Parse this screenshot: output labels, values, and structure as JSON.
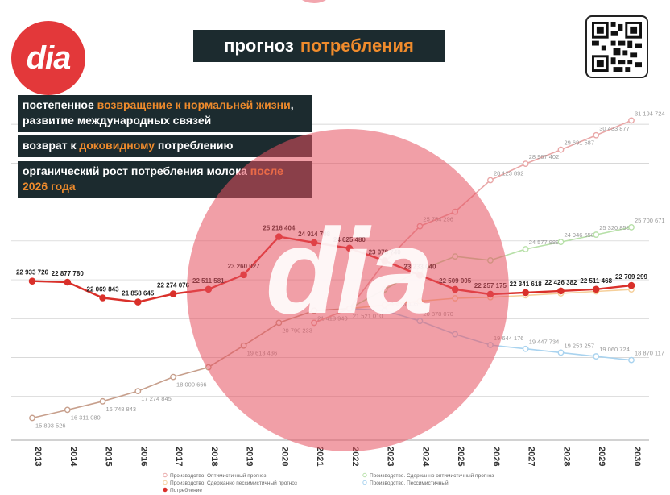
{
  "logo": {
    "text": "dia"
  },
  "header": {
    "title_part1": "прогноз",
    "title_part2": "потребления"
  },
  "notes": {
    "n1_a": "постепенное ",
    "n1_b": "возвращение к нормальней жизни",
    "n1_c": ", развитие международных связей",
    "n2_a": "возврат к ",
    "n2_b": "доковидному",
    "n2_c": " потреблению",
    "n3_a": "органический рост потребления молока ",
    "n3_b": "после 2026 года"
  },
  "watermark": {
    "text": "dia"
  },
  "colors": {
    "consumption": "#d9302a",
    "optimistic": "#e9a7a7",
    "mod_optimistic": "#b7e0a8",
    "mod_pessimistic": "#f5cf9a",
    "pessimistic": "#a9d3ef",
    "history": "#c79f8c",
    "accent": "#ef8b2c",
    "dark": "#1c2b2f"
  },
  "chart_data": {
    "type": "line",
    "x": [
      "2013",
      "2014",
      "2015",
      "2016",
      "2017",
      "2018",
      "2019",
      "2020",
      "2021",
      "2022",
      "2023",
      "2024",
      "2025",
      "2026",
      "2027",
      "2028",
      "2029",
      "2030"
    ],
    "ylim": [
      15000000,
      32000000
    ],
    "series": [
      {
        "name": "Потребление",
        "key": "consumption",
        "values": [
          22933726,
          22877780,
          22069843,
          21858645,
          22274076,
          22511581,
          23260027,
          25216404,
          24914798,
          24625480,
          23978740,
          23233040,
          22509005,
          22257175,
          22341618,
          22426382,
          22511468,
          22709299
        ],
        "labels": [
          "22 933 726",
          "22 877 780",
          "22 069 843",
          "21 858 645",
          "22 274 076",
          "22 511 581",
          "23 260 027",
          "25 216 404",
          "24 914 798",
          "24 625 480",
          "23 978 740",
          "23 233 040",
          "22 509 005",
          "22 257 175",
          "22 341 618",
          "22 426 382",
          "22 511 468",
          "22 709 299"
        ]
      },
      {
        "name": "Производство. Оптимистичный прогноз",
        "key": "optimistic",
        "values": [
          null,
          null,
          null,
          null,
          null,
          null,
          null,
          null,
          20790000,
          21521010,
          23900000,
          25754296,
          26500000,
          28123892,
          28967402,
          29691587,
          30433877,
          31194724
        ],
        "labels": [
          "",
          "",
          "",
          "",
          "",
          "",
          "",
          "",
          "",
          "",
          "",
          "25 754 296",
          "",
          "28 123 892",
          "28 967 402",
          "29 691 587",
          "30 433 877",
          "31 194 724"
        ]
      },
      {
        "name": "Производство. Сдержанно оптимистичный прогноз",
        "key": "mod_optimistic",
        "values": [
          null,
          null,
          null,
          null,
          null,
          null,
          null,
          null,
          20790000,
          21521010,
          22500000,
          23500000,
          24200000,
          24000000,
          24577989,
          24946658,
          25320858,
          25700671
        ],
        "labels": [
          "",
          "",
          "",
          "",
          "",
          "",
          "",
          "",
          "",
          "",
          "",
          "",
          "",
          "",
          "24 577 989",
          "24 946 658",
          "25 320 858",
          "25 700 671"
        ]
      },
      {
        "name": "Производство. Сдержанно пессимистичный прогноз",
        "key": "mod_pessimistic",
        "values": [
          null,
          null,
          null,
          null,
          null,
          null,
          null,
          null,
          20790000,
          21521010,
          21700000,
          21900000,
          22050000,
          22100000,
          22200000,
          22300000,
          22400000,
          22500000
        ],
        "labels": [
          "",
          "",
          "",
          "",
          "",
          "",
          "",
          "",
          "",
          "",
          "",
          "",
          "",
          "",
          "",
          "",
          "",
          ""
        ]
      },
      {
        "name": "Производство. Пессимистичный",
        "key": "pessimistic",
        "values": [
          null,
          null,
          null,
          null,
          null,
          null,
          null,
          null,
          null,
          21521010,
          21413405,
          20878070,
          20200000,
          19644176,
          19447734,
          19253257,
          19060724,
          18870117
        ],
        "labels": [
          "",
          "",
          "",
          "",
          "",
          "",
          "",
          "",
          "",
          "",
          "21 413 405",
          "20 878 070",
          "",
          "19 644 176",
          "19 447 734",
          "19 253 257",
          "19 060 724",
          "18 870 117"
        ]
      },
      {
        "name": "",
        "key": "history",
        "values": [
          15893526,
          16311080,
          16748843,
          17274845,
          18000666,
          18500000,
          19613436,
          20790233,
          21413940,
          21521010,
          null,
          null,
          null,
          null,
          null,
          null,
          null,
          null
        ],
        "labels": [
          "15 893 526",
          "16 311 080",
          "16 748 843",
          "17 274 845",
          "18 000 666",
          "",
          "19 613 436",
          "20 790 233",
          "21 413 940",
          "21 521 010",
          "",
          "",
          "",
          "",
          "",
          "",
          "",
          ""
        ]
      }
    ],
    "legend": [
      {
        "key": "optimistic",
        "label": "Производство. Оптимистичный прогноз"
      },
      {
        "key": "mod_optimistic",
        "label": "Производство. Сдержанно оптимистичный прогноз"
      },
      {
        "key": "mod_pessimistic",
        "label": "Производство. Сдержанно пессимистичный прогноз"
      },
      {
        "key": "pessimistic",
        "label": "Производство. Пессимистичный"
      },
      {
        "key": "consumption",
        "label": "Потребление"
      }
    ],
    "grid": true,
    "legend_position": "bottom"
  }
}
